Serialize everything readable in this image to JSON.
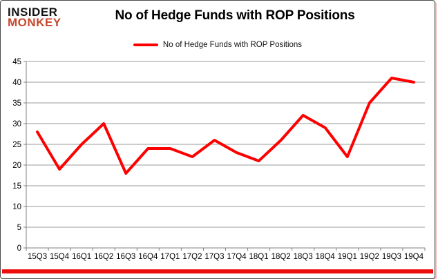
{
  "logo": {
    "line1": "INSIDER",
    "line2": "MONKEY"
  },
  "header": {
    "title": "No of Hedge Funds with ROP Positions"
  },
  "legend": {
    "label": "No of Hedge Funds with ROP Positions"
  },
  "chart_data": {
    "type": "line",
    "title": "No of Hedge Funds with ROP Positions",
    "series_name": "No of Hedge Funds with ROP Positions",
    "categories": [
      "15Q3",
      "15Q4",
      "16Q1",
      "16Q2",
      "16Q3",
      "16Q4",
      "17Q1",
      "17Q2",
      "17Q3",
      "17Q4",
      "18Q1",
      "18Q2",
      "18Q3",
      "18Q4",
      "19Q1",
      "19Q2",
      "19Q3",
      "19Q4"
    ],
    "values": [
      28,
      19,
      25,
      30,
      18,
      24,
      24,
      22,
      26,
      23,
      21,
      26,
      32,
      29,
      22,
      35,
      41,
      40
    ],
    "xlabel": "",
    "ylabel": "",
    "ylim": [
      0,
      45
    ],
    "yticks": [
      0,
      5,
      10,
      15,
      20,
      25,
      30,
      35,
      40,
      45
    ],
    "grid": true,
    "legend_position": "top"
  },
  "colors": {
    "line": "#ff0000",
    "legend_swatch": "#ff0000",
    "grid": "#9a9a9a",
    "axis": "#7f7f7f",
    "tick_text": "#000000",
    "accent_bar": "#ee0d0d",
    "logo_monkey": "#c7492f"
  }
}
